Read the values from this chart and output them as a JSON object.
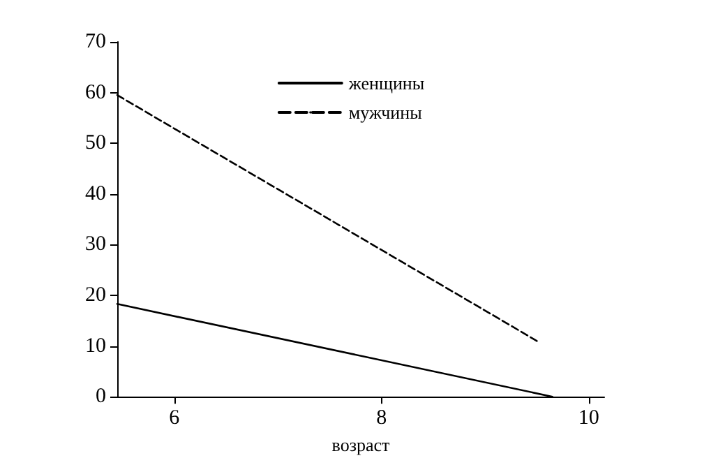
{
  "chart_data": {
    "type": "line",
    "xlabel": "возраст",
    "xlim": [
      5.45,
      10.15
    ],
    "xticks": [
      6,
      8,
      10
    ],
    "ylim": [
      0,
      70
    ],
    "yticks": [
      0,
      10,
      20,
      30,
      40,
      50,
      60,
      70
    ],
    "grid": false,
    "legend": "top",
    "marker": "none",
    "series": [
      {
        "name": "женщины",
        "color": "#000000",
        "line_style": "solid",
        "x": [
          5.45,
          9.65
        ],
        "values": [
          18.3,
          0
        ]
      },
      {
        "name": "мужчины",
        "color": "#000000",
        "line_style": "dashed",
        "x": [
          5.45,
          9.5
        ],
        "values": [
          59.5,
          11
        ]
      }
    ]
  }
}
